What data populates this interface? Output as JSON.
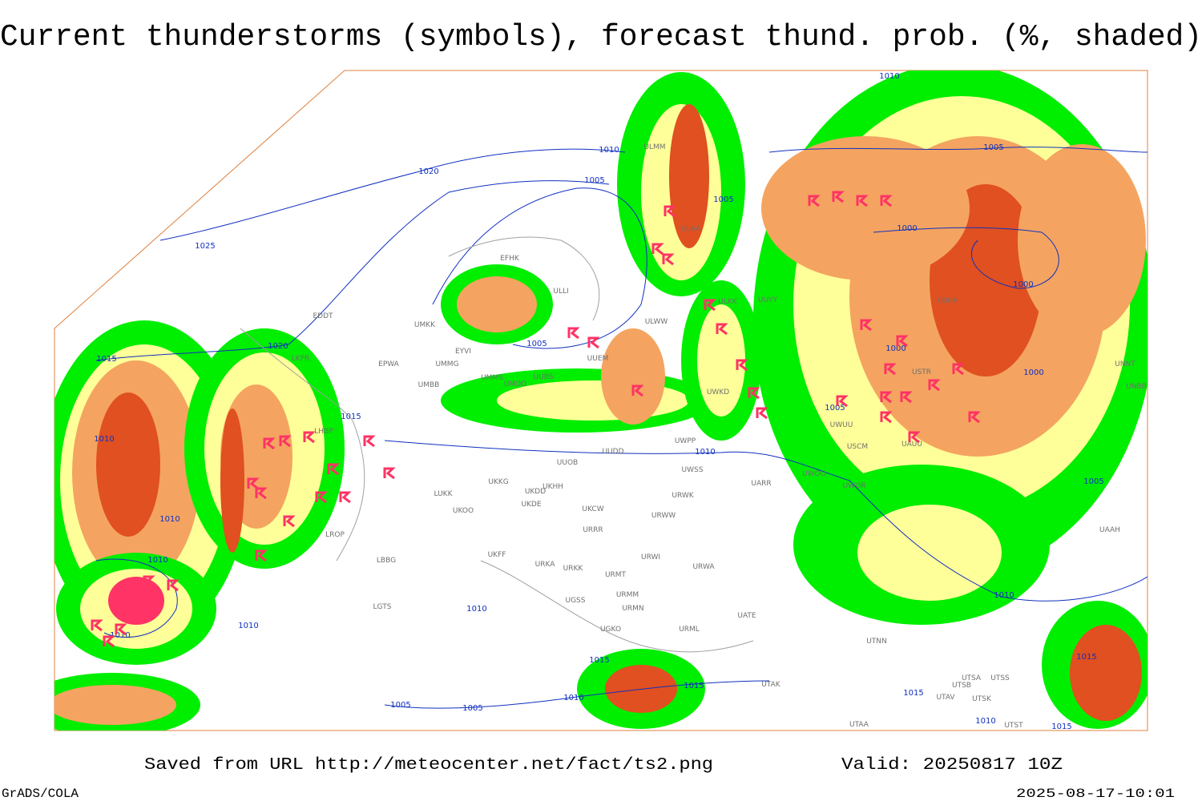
{
  "header": {
    "title": "Current thunderstorms (symbols), forecast thund. prob. (%, shaded)"
  },
  "isobar_labels": [
    "1010",
    "1010",
    "1020",
    "1005",
    "1005",
    "1005",
    "1025",
    "1000",
    "1000",
    "1020",
    "1015",
    "1005",
    "1000",
    "1000",
    "1015",
    "1005",
    "1010",
    "1010",
    "1005",
    "1010",
    "1010",
    "1010",
    "1010",
    "1010",
    "1010",
    "1015",
    "1015",
    "1015",
    "1010",
    "1015",
    "1005",
    "1005",
    "1010",
    "1015"
  ],
  "station_labels": [
    "EFHK",
    "EDDT",
    "LKPR",
    "EPWA",
    "UMMG",
    "UMMS",
    "UMOO",
    "UUBS",
    "UMBB",
    "UMKK",
    "EYVI",
    "ULLI",
    "UUEM",
    "ULWW",
    "ULKK",
    "UUYY",
    "USHH",
    "UWKD",
    "UWPP",
    "UUOB",
    "LUKK",
    "UKDD",
    "UKHH",
    "UKKG",
    "UKDE",
    "UKOO",
    "UKCW",
    "URWW",
    "UWSS",
    "URWK",
    "UARR",
    "UWOO",
    "UWOR",
    "URRR",
    "LBBG",
    "UKFF",
    "URKA",
    "URKK",
    "URMT",
    "URWI",
    "URWA",
    "URMM",
    "URMN",
    "UGSS",
    "UGKO",
    "URML",
    "UTNN",
    "UATE",
    "UTSA",
    "UTSB",
    "UTSS",
    "UTAK",
    "UTAV",
    "UTSK",
    "UTAA",
    "UTST",
    "UAAH",
    "UNBB",
    "UNNT",
    "USTR",
    "UAUU",
    "USCM",
    "UWUU",
    "LHBP",
    "LROP",
    "LGTS",
    "UUDD",
    "ULAA",
    "ULMM"
  ],
  "footer": {
    "source": "Saved from URL http://meteocenter.net/fact/ts2.png",
    "valid": "Valid: 20250817 10Z",
    "software": "GrADS/COLA",
    "timestamp": "2025-08-17-10:01"
  }
}
